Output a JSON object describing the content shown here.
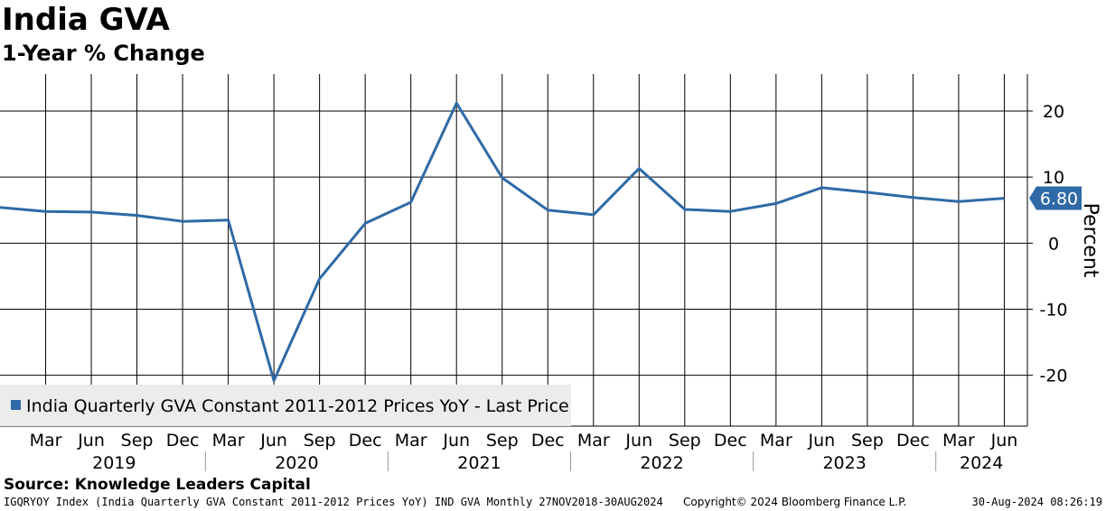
{
  "header": {
    "title": "India GVA",
    "subtitle": "1-Year % Change"
  },
  "chart_data": {
    "type": "line",
    "x": [
      "2018-12",
      "2019-03",
      "2019-06",
      "2019-09",
      "2019-12",
      "2020-03",
      "2020-06",
      "2020-09",
      "2020-12",
      "2021-03",
      "2021-06",
      "2021-09",
      "2021-12",
      "2022-03",
      "2022-06",
      "2022-09",
      "2022-12",
      "2023-03",
      "2023-06",
      "2023-09",
      "2023-12",
      "2024-03",
      "2024-06"
    ],
    "series": [
      {
        "name": "India Quarterly GVA Constant 2011-2012 Prices YoY - Last Price",
        "values": [
          5.4,
          4.8,
          4.7,
          4.2,
          3.3,
          3.5,
          -20.8,
          -5.4,
          3.0,
          6.2,
          21.2,
          9.9,
          5.0,
          4.3,
          11.3,
          5.1,
          4.8,
          6.0,
          8.4,
          7.7,
          6.9,
          6.3,
          6.8
        ],
        "color": "#2f6aa6"
      }
    ],
    "last_value_label": "6.80",
    "ylabel": "Percent",
    "ylim": [
      -27.7,
      25.6
    ],
    "yticks": [
      20,
      10,
      0,
      -10,
      -20
    ],
    "ytick_labels": [
      "20",
      "10",
      "0",
      "-10",
      "-20"
    ],
    "month_ticks": [
      "Mar",
      "Jun",
      "Sep",
      "Dec",
      "Mar",
      "Jun",
      "Sep",
      "Dec",
      "Mar",
      "Jun",
      "Sep",
      "Dec",
      "Mar",
      "Jun",
      "Sep",
      "Dec",
      "Mar",
      "Jun",
      "Sep",
      "Dec",
      "Mar",
      "Jun"
    ],
    "year_labels": [
      "2019",
      "2020",
      "2021",
      "2022",
      "2023",
      "2024"
    ],
    "grid": true,
    "legend_position": "bottom-left"
  },
  "source": "Source: Knowledge Leaders Capital",
  "footer": {
    "left": "IGQRYOY Index (India Quarterly GVA Constant 2011-2012 Prices YoY) IND GVA  Monthly 27NOV2018-30AUG2024",
    "mid": "Copyright© 2024 Bloomberg Finance L.P.",
    "right": "30-Aug-2024 08:26:19"
  }
}
